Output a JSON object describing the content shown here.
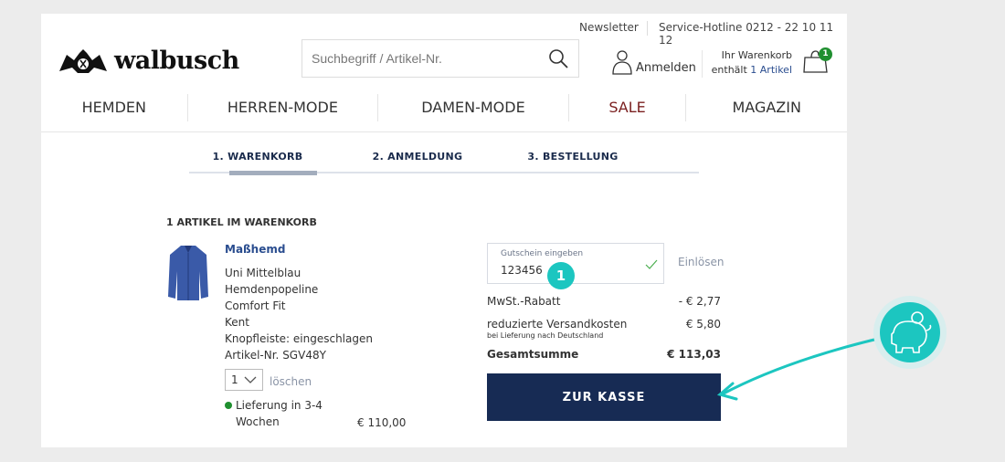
{
  "header": {
    "newsletter": "Newsletter",
    "hotline": "Service-Hotline 0212 - 22 10 11 12",
    "logo": "walbusch",
    "search_placeholder": "Suchbegriff / Artikel-Nr.",
    "login": "Anmelden",
    "cart_line1": "Ihr Warenkorb",
    "cart_line2_prefix": "enthält ",
    "cart_line2_link": "1 Artikel",
    "cart_badge": "1"
  },
  "nav": [
    {
      "label": "HEMDEN"
    },
    {
      "label": "HERREN-MODE"
    },
    {
      "label": "DAMEN-MODE"
    },
    {
      "label": "SALE",
      "color": "#7a1f1f"
    },
    {
      "label": "MAGAZIN"
    }
  ],
  "steps": [
    {
      "label": "1. WARENKORB",
      "active": true
    },
    {
      "label": "2. ANMELDUNG"
    },
    {
      "label": "3. BESTELLUNG"
    }
  ],
  "cart": {
    "title": "1 ARTIKEL IM WARENKORB",
    "item": {
      "name": "Maßhemd",
      "details": [
        "Uni Mittelblau",
        "Hemdenpopeline",
        "Comfort Fit",
        "Kent",
        "Knopfleiste: eingeschlagen",
        "Artikel-Nr. SGV48Y"
      ],
      "qty": "1",
      "delete": "löschen",
      "delivery1": "Lieferung in 3-4",
      "delivery2": "Wochen",
      "price": "€ 110,00"
    }
  },
  "coupon": {
    "label": "Gutschein eingeben",
    "value": "123456",
    "redeem": "Einlösen",
    "marker": "1"
  },
  "summary": {
    "vat_label": "MwSt.-Rabatt",
    "vat_value": "- € 2,77",
    "ship_label": "reduzierte Versandkosten",
    "ship_sub": "bei Lieferung nach Deutschland",
    "ship_value": "€ 5,80",
    "total_label": "Gesamtsumme",
    "total_value": "€ 113,03"
  },
  "checkout": "ZUR KASSE",
  "colors": {
    "accent": "#172b54",
    "teal": "#1cc6c0",
    "badge": "#1f8f2f"
  }
}
